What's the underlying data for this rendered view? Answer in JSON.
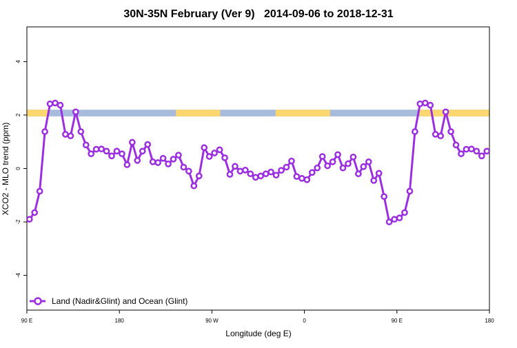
{
  "chart_data": {
    "type": "line",
    "title": "30N-35N February (Ver 9)   2014-09-06 to 2018-12-31",
    "xlabel": "Longitude (deg E)",
    "ylabel": "XCO2 - MLO trend (ppm)",
    "xlim": [
      90,
      540
    ],
    "ylim": [
      -5.3,
      5.3
    ],
    "x_ticks": [
      {
        "value": 90,
        "label": "90 E"
      },
      {
        "value": 180,
        "label": "180"
      },
      {
        "value": 270,
        "label": "90 W"
      },
      {
        "value": 360,
        "label": "0"
      },
      {
        "value": 450,
        "label": "90 E"
      },
      {
        "value": 540,
        "label": "180"
      }
    ],
    "y_ticks": [
      {
        "value": -4,
        "label": "-4"
      },
      {
        "value": -2,
        "label": "-2"
      },
      {
        "value": 0,
        "label": "0"
      },
      {
        "value": 2,
        "label": "2"
      },
      {
        "value": 4,
        "label": "4"
      }
    ],
    "surface_band": {
      "y_range": [
        1.95,
        2.2
      ],
      "ocean_color": "#a7bcdc",
      "land_color": "#fcd66e",
      "land_segments": [
        [
          90,
          111
        ],
        [
          235,
          278
        ],
        [
          332,
          385
        ],
        [
          472,
          558
        ]
      ]
    },
    "series": [
      {
        "name": "Land (Nadir&Glint) and Ocean (Glint)",
        "color": "#9b2fe0",
        "x": [
          92.5,
          97.5,
          102.5,
          107.5,
          112.5,
          117.5,
          122.5,
          127.5,
          132.5,
          137.5,
          142.5,
          147.5,
          152.5,
          157.5,
          162.5,
          167.5,
          172.5,
          177.5,
          182.5,
          187.5,
          192.5,
          197.5,
          202.5,
          207.5,
          212.5,
          217.5,
          222.5,
          227.5,
          232.5,
          237.5,
          242.5,
          247.5,
          252.5,
          257.5,
          262.5,
          267.5,
          272.5,
          277.5,
          282.5,
          287.5,
          292.5,
          297.5,
          302.5,
          307.5,
          312.5,
          317.5,
          322.5,
          327.5,
          332.5,
          337.5,
          342.5,
          347.5,
          352.5,
          357.5,
          362.5,
          367.5,
          372.5,
          377.5,
          382.5,
          387.5,
          392.5,
          397.5,
          402.5,
          407.5,
          412.5,
          417.5,
          422.5,
          427.5,
          432.5,
          437.5,
          442.5,
          447.5,
          452.5,
          457.5,
          462.5,
          467.5,
          472.5,
          477.5,
          482.5,
          487.5,
          492.5,
          497.5,
          502.5,
          507.5,
          512.5,
          517.5,
          522.5,
          527.5,
          532.5,
          537.5
        ],
        "y": [
          -1.9,
          -1.65,
          -0.85,
          1.38,
          2.42,
          2.45,
          2.37,
          1.28,
          1.22,
          2.12,
          1.38,
          0.88,
          0.55,
          0.72,
          0.73,
          0.65,
          0.47,
          0.65,
          0.55,
          0.14,
          0.98,
          0.3,
          0.65,
          0.9,
          0.25,
          0.22,
          0.38,
          0.17,
          0.35,
          0.5,
          0.05,
          -0.1,
          -0.65,
          -0.28,
          0.78,
          0.45,
          0.58,
          0.7,
          0.4,
          -0.22,
          0.08,
          -0.1,
          -0.06,
          -0.2,
          -0.33,
          -0.28,
          -0.2,
          -0.13,
          -0.25,
          -0.07,
          0.05,
          0.28,
          -0.3,
          -0.37,
          -0.42,
          -0.15,
          0.02,
          0.45,
          0.1,
          0.25,
          0.52,
          0.02,
          0.18,
          0.43,
          -0.2,
          0.07,
          0.25,
          -0.45,
          -0.18,
          -1.05,
          -2.0,
          -1.9,
          -1.85,
          -1.65,
          -0.85,
          1.38,
          2.42,
          2.45,
          2.37,
          1.28,
          1.22,
          2.12,
          1.38,
          0.88,
          0.55,
          0.72,
          0.73,
          0.65,
          0.47,
          0.65
        ]
      }
    ],
    "legend": {
      "position": "bottom-left",
      "label": "Land (Nadir&Glint) and Ocean (Glint)"
    },
    "grid": false
  }
}
